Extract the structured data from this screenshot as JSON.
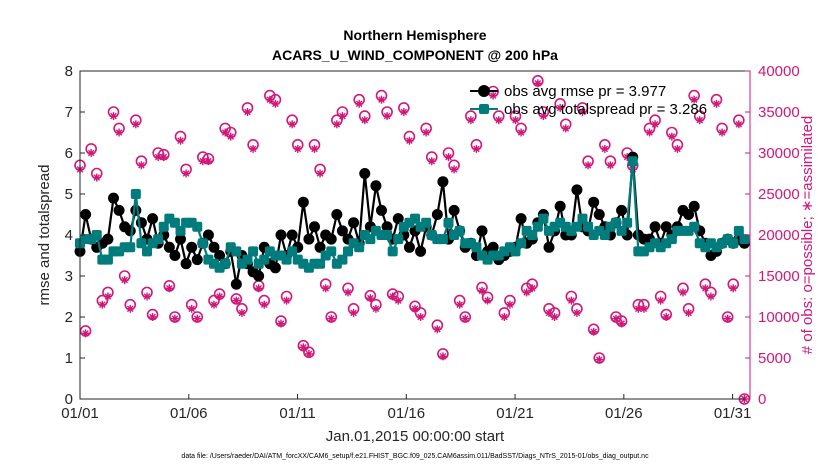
{
  "chart_data": {
    "type": "line",
    "title": "Northern Hemisphere",
    "subtitle": "ACARS_U_WIND_COMPONENT @ 200 hPa",
    "xlabel": "Jan.01,2015 00:00:00 start",
    "ylabel_left": "rmse and totalspread",
    "ylabel_right": "# of obs: o=possible; ∗=assimilated",
    "footnote": "data file: /Users/raeder/DAI/ATM_forcXX/CAM6_setup/f.e21.FHIST_BGC.f09_025.CAM6assim.011/BadSST/Diags_NTrS_2015-01/obs_diag_output.nc",
    "x_ticks": [
      {
        "label": "01/01",
        "day": 0
      },
      {
        "label": "01/06",
        "day": 5
      },
      {
        "label": "01/11",
        "day": 10
      },
      {
        "label": "01/16",
        "day": 15
      },
      {
        "label": "01/21",
        "day": 20
      },
      {
        "label": "01/26",
        "day": 25
      },
      {
        "label": "01/31",
        "day": 30
      }
    ],
    "xlim_days": [
      0,
      30.8
    ],
    "ylim_left": [
      0,
      8
    ],
    "yticks_left": [
      "0",
      "1",
      "2",
      "3",
      "4",
      "5",
      "6",
      "7",
      "8"
    ],
    "ylim_right": [
      0,
      40000
    ],
    "yticks_right": [
      "0",
      "5000",
      "10000",
      "15000",
      "20000",
      "25000",
      "30000",
      "35000",
      "40000"
    ],
    "grid": false,
    "legend_position": "top-right",
    "colors": {
      "rmse": "#000000",
      "spread": "#007c7c",
      "obs": "#d0187a",
      "axis": "#262626"
    },
    "series": [
      {
        "name": "obs avg rmse pr = 3.977",
        "axis": "left",
        "values": [
          3.6,
          4.5,
          3.9,
          3.7,
          3.8,
          3.9,
          4.9,
          4.6,
          4.2,
          4.1,
          4.6,
          4.3,
          3.9,
          4.4,
          3.8,
          4.0,
          3.7,
          3.5,
          3.9,
          3.3,
          3.7,
          3.4,
          3.8,
          4.0,
          3.7,
          3.5,
          3.3,
          3.6,
          2.8,
          3.5,
          3.3,
          3.1,
          3.0,
          3.7,
          3.3,
          3.2,
          4.0,
          3.5,
          4.0,
          3.7,
          4.8,
          3.9,
          4.2,
          3.7,
          4.0,
          3.9,
          4.5,
          4.1,
          3.9,
          4.3,
          3.8,
          5.5,
          4.2,
          5.2,
          4.6,
          4.2,
          3.9,
          4.4,
          4.0,
          3.7,
          4.1,
          3.6,
          4.2,
          4.0,
          4.5,
          5.3,
          3.9,
          4.6,
          4.1,
          3.7,
          3.8,
          3.5,
          4.1,
          3.6,
          3.7,
          3.4,
          3.5,
          3.6,
          3.7,
          4.4,
          3.8,
          3.9,
          4.3,
          4.5,
          3.7,
          4.1,
          4.7,
          4.0,
          4.0,
          5.1,
          4.2,
          4.1,
          4.8,
          4.5,
          4.2,
          4.0,
          4.3,
          4.6,
          4.0,
          5.9,
          4.0,
          3.9,
          3.9,
          4.2,
          3.8,
          4.2,
          4.0,
          4.2,
          4.6,
          4.5,
          4.7,
          4.1,
          3.8,
          3.5,
          3.6,
          3.8,
          3.9,
          3.8,
          3.9,
          3.8
        ]
      },
      {
        "name": "obs avg totalspread pr = 3.286",
        "axis": "left",
        "values": [
          3.8,
          3.9,
          3.9,
          4.0,
          3.4,
          3.4,
          3.6,
          3.6,
          3.7,
          3.7,
          5.0,
          3.8,
          3.6,
          3.8,
          3.9,
          4.2,
          4.4,
          4.3,
          4.1,
          4.3,
          4.3,
          4.2,
          3.8,
          3.4,
          3.3,
          3.2,
          3.3,
          3.7,
          3.6,
          3.3,
          3.4,
          3.6,
          3.3,
          3.4,
          3.6,
          3.5,
          3.5,
          3.4,
          3.6,
          3.4,
          3.3,
          3.2,
          3.3,
          3.3,
          3.5,
          3.6,
          3.3,
          3.4,
          3.6,
          3.8,
          3.7,
          4.0,
          3.9,
          4.1,
          4.0,
          4.0,
          3.6,
          3.9,
          4.2,
          4.3,
          4.4,
          4.2,
          4.3,
          4.0,
          3.9,
          3.9,
          4.3,
          4.0,
          4.1,
          3.8,
          3.8,
          3.7,
          3.5,
          3.4,
          3.5,
          3.5,
          3.6,
          3.7,
          3.6,
          3.8,
          4.1,
          4.0,
          4.2,
          4.4,
          4.1,
          4.2,
          4.3,
          4.2,
          4.1,
          4.2,
          4.4,
          4.2,
          4.0,
          4.1,
          4.0,
          4.2,
          4.3,
          4.1,
          4.3,
          5.8,
          3.6,
          3.6,
          3.7,
          3.8,
          3.7,
          3.8,
          3.9,
          4.1,
          4.1,
          4.1,
          4.2,
          3.8,
          3.7,
          3.8,
          3.7,
          3.8,
          3.9,
          3.8,
          4.1,
          3.9
        ]
      },
      {
        "name": "possible",
        "axis": "right",
        "values": [
          28500,
          8300,
          30500,
          27500,
          12000,
          13000,
          35000,
          33000,
          15000,
          11500,
          34000,
          29000,
          13000,
          10300,
          30000,
          29800,
          13800,
          10000,
          32000,
          28000,
          11500,
          10000,
          29500,
          29300,
          12000,
          12800,
          33000,
          32500,
          12200,
          11000,
          35500,
          31000,
          13800,
          12000,
          37000,
          36500,
          9500,
          12500,
          34000,
          31000,
          6500,
          5700,
          31000,
          28000,
          14000,
          10000,
          34000,
          35000,
          13500,
          11000,
          36500,
          34500,
          12600,
          11500,
          37000,
          35000,
          12800,
          12500,
          35500,
          32000,
          11300,
          10500,
          33000,
          29500,
          9000,
          5500,
          30000,
          28500,
          12000,
          10000,
          34500,
          31000,
          13600,
          12400,
          37500,
          34500,
          10500,
          12000,
          34500,
          33000,
          13500,
          14000,
          38800,
          35000,
          11000,
          10500,
          36000,
          33500,
          12500,
          11000,
          35500,
          29000,
          8500,
          5000,
          31000,
          29000,
          10000,
          9500,
          30000,
          28500,
          11500,
          11500,
          33000,
          34000,
          12500,
          10300,
          32500,
          31000,
          13500,
          11000,
          37000,
          34500,
          14000,
          13000,
          36500,
          33000,
          10000,
          14000,
          34000,
          0
        ]
      },
      {
        "name": "assimilated",
        "axis": "right",
        "values": [
          28000,
          8000,
          30000,
          27000,
          11500,
          12500,
          34500,
          32500,
          14500,
          11000,
          33500,
          28500,
          12500,
          10000,
          29500,
          29500,
          13500,
          9800,
          31500,
          27500,
          11000,
          9800,
          29000,
          29000,
          11500,
          12500,
          32500,
          32000,
          12000,
          10500,
          35000,
          30500,
          13500,
          11500,
          36500,
          36000,
          9200,
          12000,
          33500,
          30500,
          6300,
          5500,
          30500,
          27500,
          13500,
          9800,
          33500,
          34500,
          13000,
          10500,
          36000,
          34000,
          12300,
          11000,
          36500,
          34500,
          12500,
          12000,
          35000,
          31500,
          11000,
          10000,
          32500,
          29000,
          8500,
          5200,
          29500,
          28000,
          11500,
          9800,
          34000,
          30500,
          13200,
          12000,
          37000,
          34000,
          10000,
          11500,
          34000,
          32500,
          13000,
          13500,
          38500,
          34500,
          10500,
          10000,
          35500,
          33000,
          12000,
          10500,
          35000,
          28500,
          8200,
          4800,
          30500,
          28500,
          9800,
          9200,
          29500,
          28000,
          11000,
          11000,
          32500,
          33500,
          12000,
          10000,
          32000,
          30500,
          13000,
          10500,
          36500,
          34000,
          13500,
          12500,
          36000,
          32500,
          9800,
          13500,
          33500,
          0
        ]
      }
    ]
  }
}
